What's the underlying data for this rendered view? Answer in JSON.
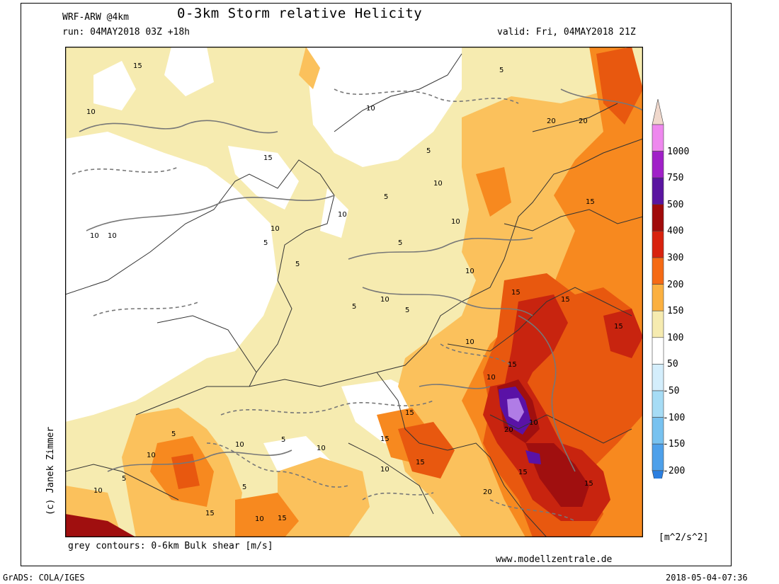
{
  "header": {
    "model": "WRF-ARW @4km",
    "title": "0-3km Storm relative Helicity",
    "run": "run: 04MAY2018 03Z +18h",
    "valid": "valid: Fri, 04MAY2018 21Z"
  },
  "map": {
    "caption": "grey contours: 0-6km Bulk shear [m/s]",
    "author": "(c) Janek Zimmer",
    "website": "www.modellzentrale.de",
    "contour_labels": [
      "5",
      "10",
      "15",
      "20"
    ],
    "colors": {
      "background": "#f6ebb0",
      "white_region": "#ffffff",
      "level_100": "#fbc15c",
      "level_150": "#f7891f",
      "level_200": "#e8580f",
      "level_300": "#c8240f",
      "level_400": "#a00f0f",
      "level_500": "#5a12a6",
      "level_750": "#b07ce6",
      "contour": "#777777",
      "border": "#333333"
    }
  },
  "colorbar": {
    "labels": [
      "1000",
      "750",
      "500",
      "400",
      "300",
      "200",
      "150",
      "100",
      "50",
      "-50",
      "-100",
      "-150",
      "-200"
    ],
    "colors": [
      "#f0d8cc",
      "#ee88ee",
      "#a020c8",
      "#5a14a0",
      "#a00a0a",
      "#d8220e",
      "#f56a14",
      "#fbb040",
      "#f6ebb0",
      "#ffffff",
      "#d4eefc",
      "#a6dcf5",
      "#78c2f0",
      "#4ea0ea",
      "#2c7fe0"
    ],
    "units": "[m^2/s^2]"
  },
  "footer": {
    "left": "GrADS: COLA/IGES",
    "right": "2018-05-04-07:36"
  }
}
